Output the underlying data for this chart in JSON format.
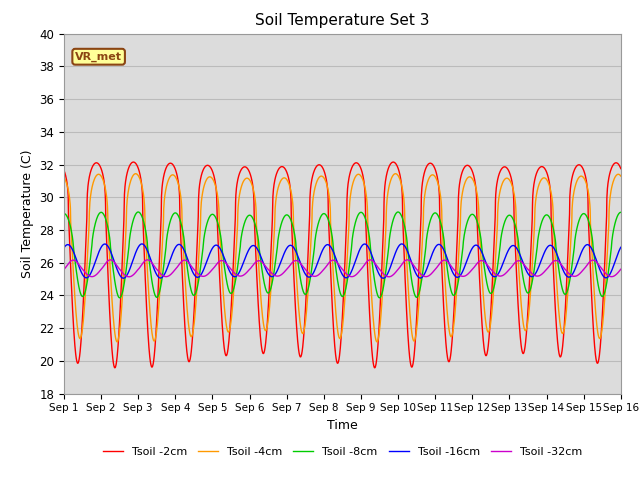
{
  "title": "Soil Temperature Set 3",
  "xlabel": "Time",
  "ylabel": "Soil Temperature (C)",
  "ylim": [
    18,
    40
  ],
  "xlim": [
    0,
    15
  ],
  "x_tick_labels": [
    "Sep 1",
    "Sep 2",
    "Sep 3",
    "Sep 4",
    "Sep 5",
    "Sep 6",
    "Sep 7",
    "Sep 8",
    "Sep 9",
    "Sep 10",
    "Sep 11",
    "Sep 12",
    "Sep 13",
    "Sep 14",
    "Sep 15",
    "Sep 16"
  ],
  "annotation_text": "VR_met",
  "band_color": "#dcdcdc",
  "series": [
    {
      "label": "Tsoil -2cm",
      "color": "#ff0000",
      "amp": 9.0,
      "mean": 29.0,
      "phase": 0.62,
      "sharpness": 3.0
    },
    {
      "label": "Tsoil -4cm",
      "color": "#ff9900",
      "amp": 7.0,
      "mean": 28.5,
      "phase": 0.68,
      "sharpness": 2.5
    },
    {
      "label": "Tsoil -8cm",
      "color": "#00cc00",
      "amp": 3.0,
      "mean": 27.0,
      "phase": 0.75,
      "sharpness": 1.5
    },
    {
      "label": "Tsoil -16cm",
      "color": "#0000ff",
      "amp": 1.0,
      "mean": 26.1,
      "phase": 0.85,
      "sharpness": 1.0
    },
    {
      "label": "Tsoil -32cm",
      "color": "#cc00cc",
      "amp": 0.55,
      "mean": 25.6,
      "phase": 1.0,
      "sharpness": 0.8
    }
  ],
  "n_points": 2000,
  "figsize": [
    6.4,
    4.8
  ],
  "dpi": 100
}
